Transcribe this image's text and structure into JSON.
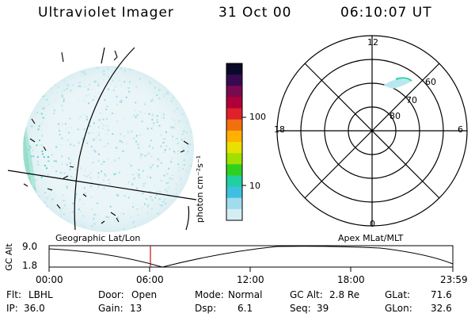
{
  "header": {
    "instrument": "Ultraviolet Imager",
    "date": "31 Oct 00",
    "time": "06:10:07 UT"
  },
  "colorbar": {
    "unit_label": "photon cm⁻²s⁻¹",
    "ticks": [
      "100",
      "10"
    ],
    "colors": [
      "#0a0a28",
      "#3a0a50",
      "#7a0a50",
      "#b0003a",
      "#e0202a",
      "#f07010",
      "#ffb000",
      "#e8e000",
      "#a0e000",
      "#30d020",
      "#20d0a0",
      "#40c0e0",
      "#a0dcec",
      "#d4eef4"
    ]
  },
  "polar": {
    "mlt_labels": {
      "top": "12",
      "left": "18",
      "right": "6",
      "bottom": "0"
    },
    "lat_labels": [
      "60",
      "70",
      "80"
    ]
  },
  "timeline": {
    "left_label": "Geographic Lat/Lon",
    "right_label": "Apex  MLat/MLT",
    "y_axis_label": "GC Alt",
    "y_ticks": [
      "9.0",
      "1.8"
    ],
    "x_ticks": [
      "00:00",
      "06:00",
      "12:00",
      "18:00",
      "23:59"
    ],
    "current_time_marker": "06:10"
  },
  "info": {
    "row1": [
      {
        "k": "Flt:",
        "v": "LBHL"
      },
      {
        "k": "Door:",
        "v": "Open"
      },
      {
        "k": "Mode:",
        "v": "Normal"
      },
      {
        "k": "GC Alt:",
        "v": "2.8 Re"
      },
      {
        "k": "GLat:",
        "v": "71.6"
      }
    ],
    "row2": [
      {
        "k": "IP:",
        "v": "36.0"
      },
      {
        "k": "Gain:",
        "v": "13"
      },
      {
        "k": "Dsp:",
        "v": "6.1"
      },
      {
        "k": "Seq:",
        "v": "39"
      },
      {
        "k": "GLon:",
        "v": "32.6"
      }
    ]
  }
}
